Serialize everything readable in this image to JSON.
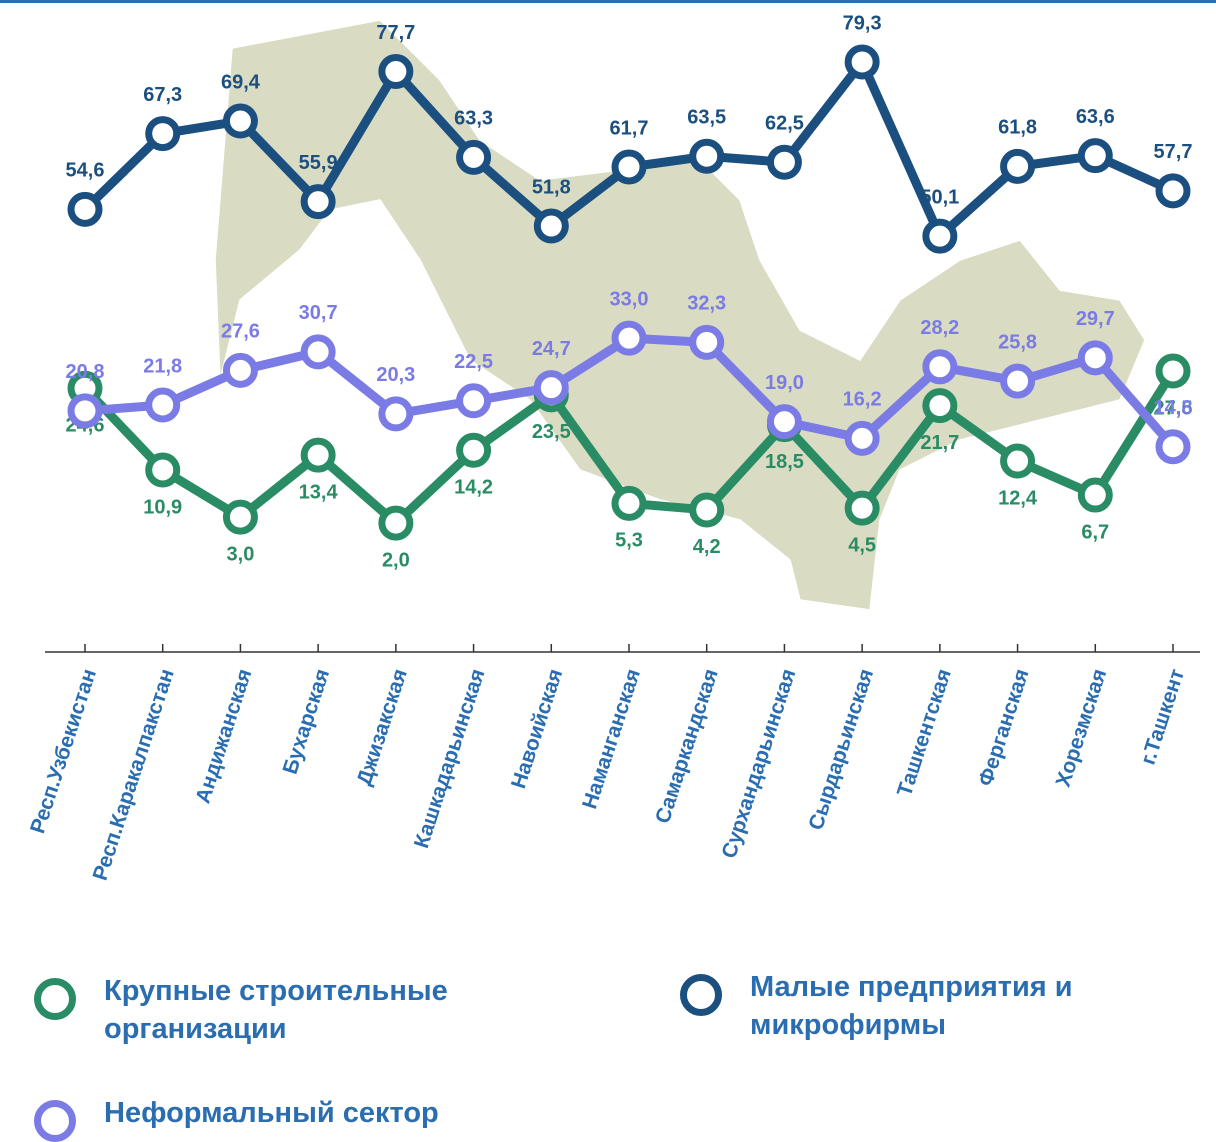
{
  "chart_data": {
    "type": "line",
    "categories": [
      "Респ.Узбекистан",
      "Респ.Каракалпакстан",
      "Андижанская",
      "Бухарская",
      "Джизакская",
      "Кашкадарьинская",
      "Навоийская",
      "Наманганская",
      "Самаркандская",
      "Сурхандарьинская",
      "Сырдарьинская",
      "Ташкентская",
      "Ферганская",
      "Хорезмская",
      "г.Ташкент"
    ],
    "series": [
      {
        "name": "Крупные строительные организации",
        "color": "#2a8c64",
        "values": [
          24.6,
          10.9,
          3.0,
          13.4,
          2.0,
          14.2,
          23.5,
          5.3,
          4.2,
          18.5,
          4.5,
          21.7,
          12.4,
          6.7,
          27.5
        ],
        "value_labels": [
          "24,6",
          "10,9",
          "3,0",
          "13,4",
          "2,0",
          "14,2",
          "23,5",
          "5,3",
          "4,2",
          "18,5",
          "4,5",
          "21,7",
          "12,4",
          "6,7",
          "27,5"
        ]
      },
      {
        "name": "Малые предприятия и микрофирмы",
        "color": "#1b4f7f",
        "values": [
          54.6,
          67.3,
          69.4,
          55.9,
          77.7,
          63.3,
          51.8,
          61.7,
          63.5,
          62.5,
          79.3,
          50.1,
          61.8,
          63.6,
          57.7
        ],
        "value_labels": [
          "54,6",
          "67,3",
          "69,4",
          "55,9",
          "77,7",
          "63,3",
          "51,8",
          "61,7",
          "63,5",
          "62,5",
          "79,3",
          "50,1",
          "61,8",
          "63,6",
          "57,7"
        ]
      },
      {
        "name": "Неформальный сектор",
        "color": "#7b7be6",
        "values": [
          20.8,
          21.8,
          27.6,
          30.7,
          20.3,
          22.5,
          24.7,
          33.0,
          32.3,
          19.0,
          16.2,
          28.2,
          25.8,
          29.7,
          14.8
        ],
        "value_labels": [
          "20,8",
          "21,8",
          "27,6",
          "30,7",
          "20,3",
          "22,5",
          "24,7",
          "33,0",
          "32,3",
          "19,0",
          "16,2",
          "28,2",
          "25,8",
          "29,7",
          "14,8"
        ]
      }
    ]
  }
}
